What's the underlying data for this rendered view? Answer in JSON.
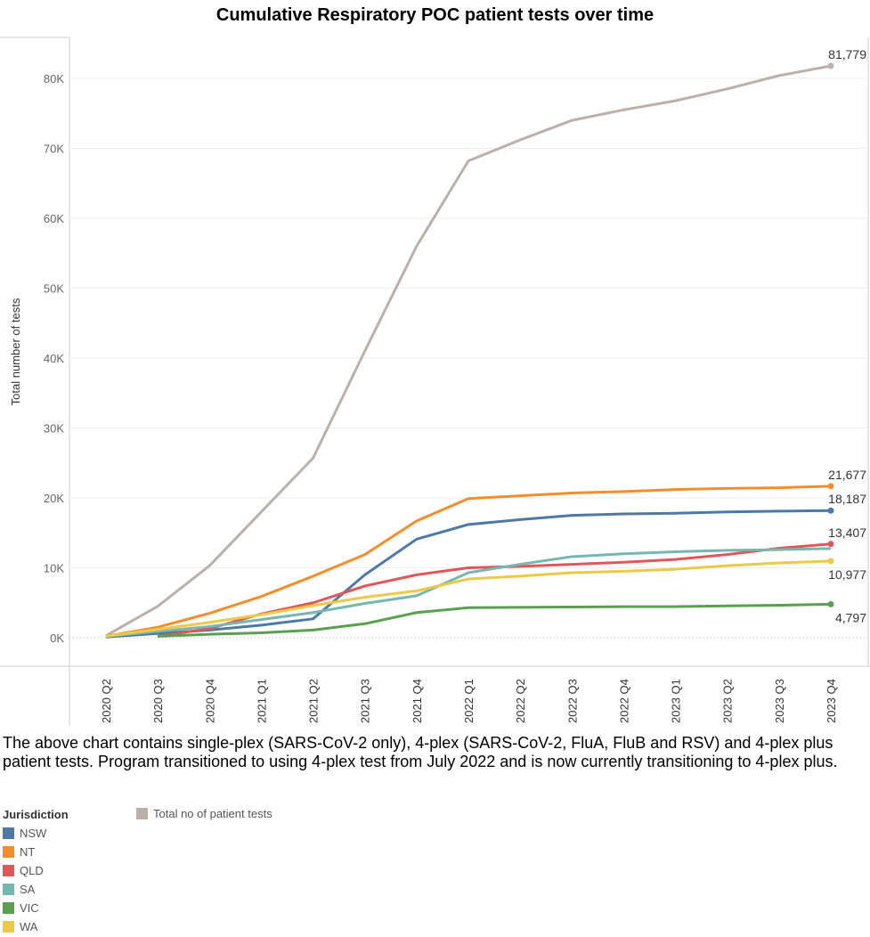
{
  "chart_data": {
    "type": "line",
    "title": "Cumulative Respiratory POC patient tests over time",
    "ylabel": "Total number of tests",
    "xlabel": "",
    "ylim": [
      0,
      85000
    ],
    "yticks": [
      "0K",
      "10K",
      "20K",
      "30K",
      "40K",
      "50K",
      "60K",
      "70K",
      "80K"
    ],
    "ytick_values": [
      0,
      10000,
      20000,
      30000,
      40000,
      50000,
      60000,
      70000,
      80000
    ],
    "grid": true,
    "categories": [
      "2020 Q2",
      "2020 Q3",
      "2020 Q4",
      "2021 Q1",
      "2021 Q2",
      "2021 Q3",
      "2021 Q4",
      "2022 Q1",
      "2022 Q2",
      "2022 Q3",
      "2022 Q4",
      "2023 Q1",
      "2023 Q2",
      "2023 Q3",
      "2023 Q4"
    ],
    "series": [
      {
        "name": "Total no of patient tests",
        "color": "#bab0ac",
        "values": [
          300,
          4500,
          10300,
          18000,
          25700,
          41000,
          56000,
          68200,
          71200,
          74000,
          75500,
          76800,
          78500,
          80400,
          81779
        ],
        "end_label": "81,779",
        "label_pos": "above"
      },
      {
        "name": "NT",
        "color": "#f28e2b",
        "values": [
          200,
          1500,
          3500,
          5900,
          8800,
          11900,
          16700,
          19900,
          20300,
          20700,
          20900,
          21200,
          21350,
          21450,
          21677
        ],
        "end_label": "21,677",
        "label_pos": "above"
      },
      {
        "name": "NSW",
        "color": "#4e79a7",
        "values": [
          100,
          600,
          1100,
          1800,
          2700,
          9000,
          14100,
          16200,
          16900,
          17500,
          17700,
          17800,
          18000,
          18100,
          18187
        ],
        "end_label": "18,187",
        "label_pos": "above"
      },
      {
        "name": "QLD",
        "color": "#e15759",
        "values": [
          null,
          200,
          1300,
          3400,
          5000,
          7400,
          9000,
          10000,
          10200,
          10500,
          10800,
          11200,
          11900,
          12800,
          13407
        ],
        "end_label": "13,407",
        "label_pos": "above"
      },
      {
        "name": "SA",
        "color": "#76b7b2",
        "values": [
          200,
          900,
          1600,
          2600,
          3600,
          4900,
          6000,
          9300,
          10500,
          11600,
          12000,
          12300,
          12500,
          12600,
          12750
        ],
        "end_label": "",
        "label_pos": "none"
      },
      {
        "name": "VIC",
        "color": "#59a14f",
        "values": [
          null,
          200,
          500,
          700,
          1100,
          2000,
          3600,
          4300,
          4350,
          4400,
          4450,
          4450,
          4550,
          4650,
          4797
        ],
        "end_label": "4,797",
        "label_pos": "below"
      },
      {
        "name": "WA",
        "color": "#edc948",
        "values": [
          200,
          1200,
          2200,
          3300,
          4600,
          5800,
          6700,
          8400,
          8800,
          9300,
          9500,
          9800,
          10300,
          10700,
          10977
        ],
        "end_label": "10,977",
        "label_pos": "below"
      }
    ]
  },
  "note": "The above chart contains single-plex (SARS-CoV-2 only), 4-plex (SARS-CoV-2, FluA, FluB and RSV) and 4-plex plus patient tests. Program transitioned to using 4-plex test from July 2022 and is now currently transitioning to 4-plex plus.",
  "legend": {
    "title": "Jurisdiction",
    "items": [
      {
        "label": "NSW",
        "color": "#4e79a7"
      },
      {
        "label": "NT",
        "color": "#f28e2b"
      },
      {
        "label": "QLD",
        "color": "#e15759"
      },
      {
        "label": "SA",
        "color": "#76b7b2"
      },
      {
        "label": "VIC",
        "color": "#59a14f"
      },
      {
        "label": "WA",
        "color": "#edc948"
      }
    ],
    "total": {
      "label": "Total no of patient tests",
      "color": "#bab0ac"
    }
  }
}
